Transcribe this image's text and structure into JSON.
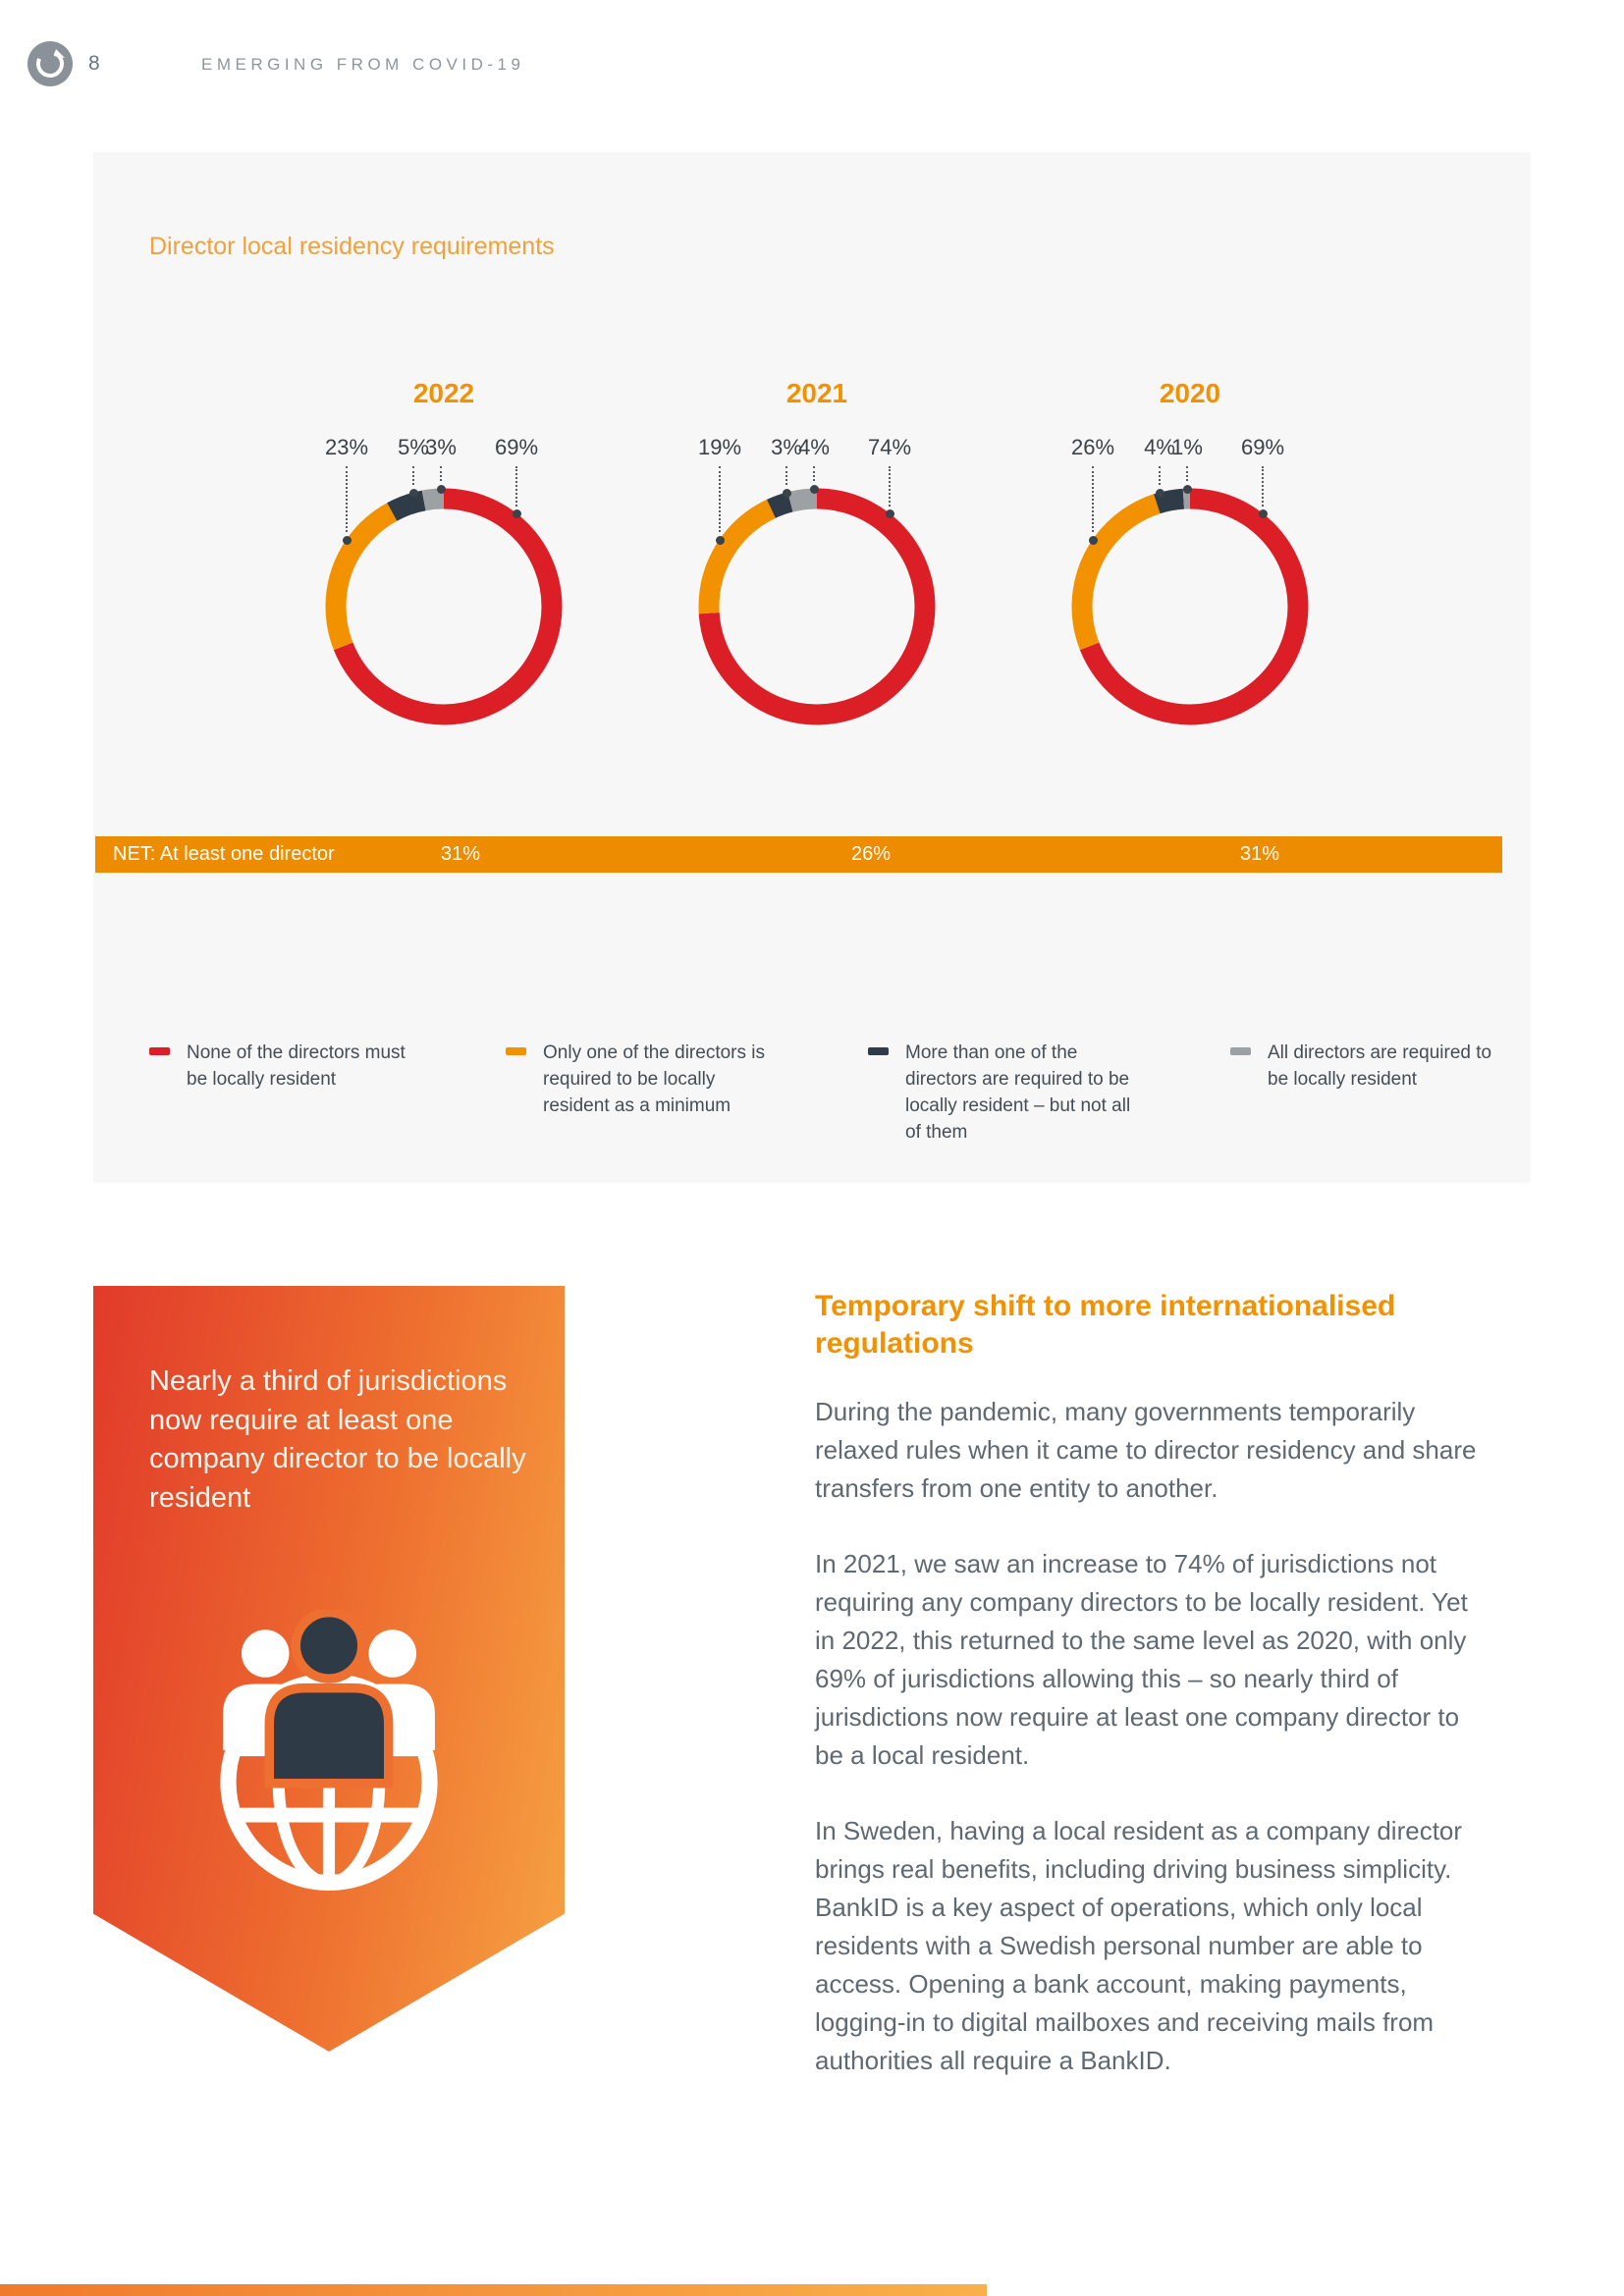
{
  "page_header": {
    "logo_icon": "compass-logo-icon",
    "page_number": "8",
    "title": "EMERGING FROM COVID-19"
  },
  "chart_data": {
    "type": "donut",
    "title": "Director local residency requirements",
    "unit": "%",
    "segment_order": [
      "none",
      "only_one",
      "more_than_one",
      "all"
    ],
    "segment_colors": {
      "none": "#dc1f26",
      "only_one": "#f39200",
      "more_than_one": "#2f3b46",
      "all": "#9da1a4"
    },
    "charts": [
      {
        "year": "2022",
        "values": {
          "none": 69,
          "only_one": 23,
          "more_than_one": 5,
          "all": 3
        },
        "net": "31%"
      },
      {
        "year": "2021",
        "values": {
          "none": 74,
          "only_one": 19,
          "more_than_one": 3,
          "all": 4
        },
        "net": "26%"
      },
      {
        "year": "2020",
        "values": {
          "none": 69,
          "only_one": 26,
          "more_than_one": 4,
          "all": 1
        },
        "net": "31%"
      }
    ],
    "net_label": "NET: At least one director",
    "legend": [
      {
        "key": "none",
        "color": "#dc1f26",
        "label": "None of the directors must be locally resident"
      },
      {
        "key": "only_one",
        "color": "#f39200",
        "label": "Only one of the directors is required to be locally resident as a minimum"
      },
      {
        "key": "more_than_one",
        "color": "#2f3b46",
        "label": "More than one of the directors are required to be locally resident – but not all of them"
      },
      {
        "key": "all",
        "color": "#9da1a4",
        "label": "All directors are required to be locally resident"
      }
    ]
  },
  "callout": {
    "text": "Nearly a third of jurisdictions now require at least one company director to be locally resident",
    "icon": "globe-people-icon"
  },
  "article": {
    "heading": "Temporary shift to more internationalised regulations",
    "paragraphs": [
      "During the pandemic, many governments temporarily relaxed rules when it came to director residency and share transfers from one entity to another.",
      "In 2021, we saw an increase to 74% of jurisdictions not requiring any company directors to be locally resident. Yet in 2022, this returned to the same level as 2020, with only 69% of jurisdictions allowing this – so nearly third of jurisdictions now require at least one company director to be a local resident.",
      "In Sweden, having a local resident as a company director brings real benefits, including driving business simplicity. BankID is a key aspect of operations, which only local residents with a Swedish personal number are able to access. Opening a bank account, making payments, logging-in to digital mailboxes and receiving mails from authorities all require a BankID."
    ]
  },
  "colors": {
    "net_bar": "#ee8c00",
    "accent_orange": "#f39200",
    "panel_title_orange": "#f0a13c",
    "banner_gradient_start": "#e13a2a",
    "banner_gradient_end": "#f6a343",
    "body_text": "#5f6972"
  }
}
